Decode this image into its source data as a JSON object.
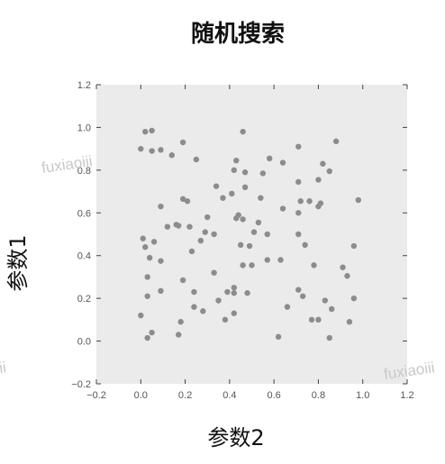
{
  "chart_data": {
    "type": "scatter",
    "title": "随机搜索",
    "xlabel": "参数2",
    "ylabel": "参数1",
    "xlim": [
      -0.2,
      1.2
    ],
    "ylim": [
      -0.2,
      1.2
    ],
    "xticks": [
      "−0.2",
      "0.0",
      "0.2",
      "0.4",
      "0.6",
      "0.8",
      "1.0",
      "1.2"
    ],
    "yticks": [
      "−0.2",
      "0.0",
      "0.2",
      "0.4",
      "0.6",
      "0.8",
      "1.0",
      "1.2"
    ],
    "grid": false,
    "background": "#ebebeb",
    "point_color": "#8c8c8c",
    "points": [
      [
        0.02,
        0.98
      ],
      [
        0.05,
        0.985
      ],
      [
        0.0,
        0.9
      ],
      [
        0.05,
        0.89
      ],
      [
        0.09,
        0.895
      ],
      [
        0.14,
        0.87
      ],
      [
        0.19,
        0.93
      ],
      [
        0.25,
        0.85
      ],
      [
        0.46,
        0.98
      ],
      [
        0.71,
        0.91
      ],
      [
        0.88,
        0.935
      ],
      [
        0.82,
        0.83
      ],
      [
        0.64,
        0.835
      ],
      [
        0.58,
        0.855
      ],
      [
        0.43,
        0.845
      ],
      [
        0.42,
        0.8
      ],
      [
        0.47,
        0.79
      ],
      [
        0.55,
        0.785
      ],
      [
        0.71,
        0.745
      ],
      [
        0.85,
        0.795
      ],
      [
        0.8,
        0.755
      ],
      [
        0.34,
        0.725
      ],
      [
        0.47,
        0.72
      ],
      [
        0.41,
        0.69
      ],
      [
        0.37,
        0.67
      ],
      [
        0.54,
        0.67
      ],
      [
        0.19,
        0.665
      ],
      [
        0.21,
        0.655
      ],
      [
        0.72,
        0.655
      ],
      [
        0.76,
        0.655
      ],
      [
        0.64,
        0.62
      ],
      [
        0.8,
        0.63
      ],
      [
        0.81,
        0.645
      ],
      [
        0.98,
        0.66
      ],
      [
        0.09,
        0.63
      ],
      [
        0.71,
        0.6
      ],
      [
        0.44,
        0.59
      ],
      [
        0.43,
        0.575
      ],
      [
        0.46,
        0.57
      ],
      [
        0.12,
        0.535
      ],
      [
        0.22,
        0.535
      ],
      [
        0.16,
        0.545
      ],
      [
        0.17,
        0.54
      ],
      [
        0.53,
        0.555
      ],
      [
        0.51,
        0.51
      ],
      [
        0.29,
        0.51
      ],
      [
        0.33,
        0.5
      ],
      [
        0.57,
        0.5
      ],
      [
        0.71,
        0.5
      ],
      [
        0.01,
        0.48
      ],
      [
        0.02,
        0.44
      ],
      [
        0.06,
        0.465
      ],
      [
        0.27,
        0.47
      ],
      [
        0.45,
        0.45
      ],
      [
        0.49,
        0.445
      ],
      [
        0.74,
        0.45
      ],
      [
        0.96,
        0.445
      ],
      [
        0.23,
        0.42
      ],
      [
        0.04,
        0.39
      ],
      [
        0.09,
        0.375
      ],
      [
        0.57,
        0.38
      ],
      [
        0.63,
        0.38
      ],
      [
        0.78,
        0.355
      ],
      [
        0.91,
        0.345
      ],
      [
        0.46,
        0.355
      ],
      [
        0.5,
        0.355
      ],
      [
        0.33,
        0.32
      ],
      [
        0.03,
        0.3
      ],
      [
        0.93,
        0.305
      ],
      [
        0.19,
        0.285
      ],
      [
        0.42,
        0.25
      ],
      [
        0.39,
        0.23
      ],
      [
        0.42,
        0.225
      ],
      [
        0.48,
        0.225
      ],
      [
        0.71,
        0.24
      ],
      [
        0.09,
        0.235
      ],
      [
        0.24,
        0.23
      ],
      [
        0.03,
        0.21
      ],
      [
        0.73,
        0.21
      ],
      [
        0.83,
        0.19
      ],
      [
        0.96,
        0.2
      ],
      [
        0.24,
        0.16
      ],
      [
        0.28,
        0.14
      ],
      [
        0.66,
        0.16
      ],
      [
        0.86,
        0.15
      ],
      [
        0.0,
        0.12
      ],
      [
        0.38,
        0.1
      ],
      [
        0.42,
        0.13
      ],
      [
        0.18,
        0.09
      ],
      [
        0.77,
        0.1
      ],
      [
        0.8,
        0.1
      ],
      [
        0.94,
        0.09
      ],
      [
        0.05,
        0.04
      ],
      [
        0.03,
        0.015
      ],
      [
        0.17,
        0.03
      ],
      [
        0.62,
        0.02
      ],
      [
        0.85,
        0.015
      ],
      [
        0.35,
        0.19
      ],
      [
        0.3,
        0.58
      ]
    ]
  },
  "watermarks": [
    "fuxiaoiii",
    "fuxiaoiii",
    "ii"
  ]
}
